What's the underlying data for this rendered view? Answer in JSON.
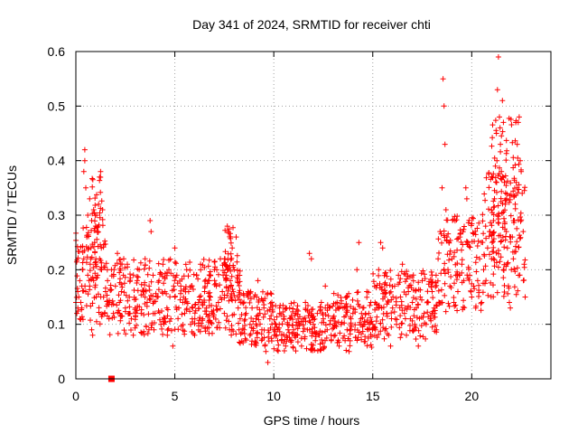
{
  "chart_data": {
    "type": "scatter",
    "title": "Day 341 of 2024, SRMTID for receiver chti",
    "xlabel": "GPS time / hours",
    "ylabel": "SRMTID / TECUs",
    "xlim": [
      0,
      24
    ],
    "ylim": [
      0,
      0.6
    ],
    "xticks": [
      0,
      5,
      10,
      15,
      20
    ],
    "xtick_labels": [
      "0",
      "5",
      "10",
      "15",
      "20"
    ],
    "yticks": [
      0,
      0.1,
      0.2,
      0.3,
      0.4,
      0.5,
      0.6
    ],
    "ytick_labels": [
      "0",
      "0.1",
      "0.2",
      "0.3",
      "0.4",
      "0.5",
      "0.6"
    ],
    "grid": true,
    "marker": "plus",
    "marker_color": "#ff0000",
    "series": [
      {
        "name": "SRMTID",
        "points": [
          [
            0.0,
            0.14
          ],
          [
            0.05,
            0.12
          ],
          [
            0.1,
            0.16
          ],
          [
            0.1,
            0.13
          ],
          [
            0.15,
            0.15
          ],
          [
            0.2,
            0.11
          ],
          [
            0.2,
            0.18
          ],
          [
            0.25,
            0.14
          ],
          [
            0.3,
            0.13
          ],
          [
            0.3,
            0.17
          ],
          [
            0.35,
            0.2
          ],
          [
            0.4,
            0.22
          ],
          [
            0.4,
            0.38
          ],
          [
            0.45,
            0.42
          ],
          [
            0.45,
            0.4
          ],
          [
            0.5,
            0.35
          ],
          [
            0.5,
            0.16
          ],
          [
            0.55,
            0.26
          ],
          [
            0.6,
            0.3
          ],
          [
            0.6,
            0.19
          ],
          [
            0.65,
            0.24
          ],
          [
            0.7,
            0.33
          ],
          [
            0.7,
            0.17
          ],
          [
            0.75,
            0.22
          ],
          [
            0.8,
            0.29
          ],
          [
            0.8,
            0.09
          ],
          [
            0.85,
            0.08
          ],
          [
            0.9,
            0.31
          ],
          [
            0.9,
            0.18
          ],
          [
            0.95,
            0.25
          ],
          [
            1.0,
            0.28
          ],
          [
            1.0,
            0.21
          ],
          [
            1.05,
            0.3
          ],
          [
            1.1,
            0.27
          ],
          [
            1.1,
            0.19
          ],
          [
            1.15,
            0.32
          ],
          [
            1.2,
            0.37
          ],
          [
            1.2,
            0.22
          ],
          [
            1.25,
            0.38
          ],
          [
            1.3,
            0.2
          ],
          [
            1.35,
            0.31
          ],
          [
            1.4,
            0.15
          ],
          [
            1.45,
            0.12
          ],
          [
            1.5,
            0.16
          ],
          [
            1.6,
            0.18
          ],
          [
            1.7,
            0.14
          ],
          [
            1.8,
            0.2
          ],
          [
            1.9,
            0.12
          ],
          [
            2.0,
            0.17
          ],
          [
            2.1,
            0.23
          ],
          [
            2.2,
            0.14
          ],
          [
            2.3,
            0.16
          ],
          [
            2.4,
            0.19
          ],
          [
            2.5,
            0.13
          ],
          [
            2.6,
            0.21
          ],
          [
            2.7,
            0.15
          ],
          [
            2.8,
            0.11
          ],
          [
            2.9,
            0.08
          ],
          [
            3.0,
            0.13
          ],
          [
            3.1,
            0.18
          ],
          [
            3.2,
            0.2
          ],
          [
            3.3,
            0.12
          ],
          [
            3.4,
            0.16
          ],
          [
            3.5,
            0.22
          ],
          [
            3.6,
            0.14
          ],
          [
            3.7,
            0.17
          ],
          [
            3.75,
            0.29
          ],
          [
            3.8,
            0.27
          ],
          [
            3.9,
            0.19
          ],
          [
            4.0,
            0.12
          ],
          [
            4.1,
            0.15
          ],
          [
            4.2,
            0.18
          ],
          [
            4.3,
            0.1
          ],
          [
            4.4,
            0.21
          ],
          [
            4.5,
            0.16
          ],
          [
            4.6,
            0.13
          ],
          [
            4.7,
            0.2
          ],
          [
            4.8,
            0.11
          ],
          [
            4.9,
            0.06
          ],
          [
            5.0,
            0.24
          ],
          [
            5.0,
            0.15
          ],
          [
            5.1,
            0.19
          ],
          [
            5.2,
            0.13
          ],
          [
            5.3,
            0.17
          ],
          [
            5.4,
            0.14
          ],
          [
            5.5,
            0.12
          ],
          [
            5.6,
            0.2
          ],
          [
            5.7,
            0.16
          ],
          [
            5.8,
            0.1
          ],
          [
            5.9,
            0.13
          ],
          [
            6.0,
            0.08
          ],
          [
            6.1,
            0.19
          ],
          [
            6.2,
            0.14
          ],
          [
            6.3,
            0.21
          ],
          [
            6.4,
            0.11
          ],
          [
            6.5,
            0.16
          ],
          [
            6.6,
            0.13
          ],
          [
            6.7,
            0.18
          ],
          [
            6.8,
            0.15
          ],
          [
            6.9,
            0.12
          ],
          [
            7.0,
            0.2
          ],
          [
            7.1,
            0.17
          ],
          [
            7.2,
            0.14
          ],
          [
            7.3,
            0.22
          ],
          [
            7.4,
            0.16
          ],
          [
            7.5,
            0.12
          ],
          [
            7.6,
            0.19
          ],
          [
            7.65,
            0.28
          ],
          [
            7.7,
            0.27
          ],
          [
            7.8,
            0.18
          ],
          [
            7.9,
            0.24
          ],
          [
            8.0,
            0.2
          ],
          [
            8.1,
            0.26
          ],
          [
            8.2,
            0.13
          ],
          [
            8.3,
            0.11
          ],
          [
            8.4,
            0.14
          ],
          [
            8.5,
            0.09
          ],
          [
            8.6,
            0.12
          ],
          [
            8.7,
            0.16
          ],
          [
            8.8,
            0.1
          ],
          [
            8.9,
            0.13
          ],
          [
            9.0,
            0.15
          ],
          [
            9.1,
            0.11
          ],
          [
            9.2,
            0.18
          ],
          [
            9.3,
            0.12
          ],
          [
            9.4,
            0.09
          ],
          [
            9.5,
            0.13
          ],
          [
            9.6,
            0.05
          ],
          [
            9.7,
            0.03
          ],
          [
            9.8,
            0.11
          ],
          [
            9.9,
            0.14
          ],
          [
            10.0,
            0.09
          ],
          [
            10.1,
            0.1
          ],
          [
            10.2,
            0.07
          ],
          [
            10.3,
            0.12
          ],
          [
            10.4,
            0.08
          ],
          [
            10.5,
            0.11
          ],
          [
            10.6,
            0.06
          ],
          [
            10.7,
            0.1
          ],
          [
            10.8,
            0.13
          ],
          [
            10.9,
            0.07
          ],
          [
            11.0,
            0.09
          ],
          [
            11.1,
            0.12
          ],
          [
            11.2,
            0.08
          ],
          [
            11.3,
            0.1
          ],
          [
            11.4,
            0.06
          ],
          [
            11.5,
            0.11
          ],
          [
            11.6,
            0.14
          ],
          [
            11.7,
            0.09
          ],
          [
            11.8,
            0.23
          ],
          [
            11.9,
            0.22
          ],
          [
            12.0,
            0.1
          ],
          [
            12.1,
            0.07
          ],
          [
            12.2,
            0.12
          ],
          [
            12.3,
            0.08
          ],
          [
            12.4,
            0.14
          ],
          [
            12.5,
            0.11
          ],
          [
            12.6,
            0.17
          ],
          [
            12.7,
            0.09
          ],
          [
            12.8,
            0.13
          ],
          [
            12.9,
            0.07
          ],
          [
            13.0,
            0.11
          ],
          [
            13.1,
            0.08
          ],
          [
            13.2,
            0.14
          ],
          [
            13.3,
            0.06
          ],
          [
            13.4,
            0.1
          ],
          [
            13.5,
            0.13
          ],
          [
            13.6,
            0.07
          ],
          [
            13.7,
            0.09
          ],
          [
            13.8,
            0.05
          ],
          [
            13.9,
            0.11
          ],
          [
            14.0,
            0.12
          ],
          [
            14.1,
            0.09
          ],
          [
            14.2,
            0.2
          ],
          [
            14.3,
            0.25
          ],
          [
            14.4,
            0.11
          ],
          [
            14.5,
            0.13
          ],
          [
            14.6,
            0.1
          ],
          [
            14.7,
            0.16
          ],
          [
            14.8,
            0.12
          ],
          [
            14.9,
            0.14
          ],
          [
            15.0,
            0.1
          ],
          [
            15.1,
            0.17
          ],
          [
            15.2,
            0.13
          ],
          [
            15.3,
            0.2
          ],
          [
            15.4,
            0.25
          ],
          [
            15.5,
            0.24
          ],
          [
            15.6,
            0.15
          ],
          [
            15.7,
            0.12
          ],
          [
            15.8,
            0.08
          ],
          [
            15.9,
            0.06
          ],
          [
            16.0,
            0.13
          ],
          [
            16.1,
            0.17
          ],
          [
            16.2,
            0.1
          ],
          [
            16.3,
            0.19
          ],
          [
            16.4,
            0.15
          ],
          [
            16.5,
            0.21
          ],
          [
            16.6,
            0.12
          ],
          [
            16.7,
            0.08
          ],
          [
            16.8,
            0.16
          ],
          [
            16.9,
            0.11
          ],
          [
            17.0,
            0.14
          ],
          [
            17.1,
            0.09
          ],
          [
            17.2,
            0.13
          ],
          [
            17.3,
            0.06
          ],
          [
            17.4,
            0.15
          ],
          [
            17.5,
            0.18
          ],
          [
            17.6,
            0.12
          ],
          [
            17.7,
            0.1
          ],
          [
            17.8,
            0.14
          ],
          [
            17.9,
            0.11
          ],
          [
            18.0,
            0.16
          ],
          [
            18.1,
            0.13
          ],
          [
            18.2,
            0.19
          ],
          [
            18.3,
            0.22
          ],
          [
            18.4,
            0.27
          ],
          [
            18.5,
            0.35
          ],
          [
            18.55,
            0.55
          ],
          [
            18.6,
            0.5
          ],
          [
            18.65,
            0.43
          ],
          [
            18.7,
            0.31
          ],
          [
            18.75,
            0.26
          ],
          [
            18.8,
            0.2
          ],
          [
            18.9,
            0.17
          ],
          [
            19.0,
            0.22
          ],
          [
            19.1,
            0.14
          ],
          [
            19.2,
            0.19
          ],
          [
            19.3,
            0.16
          ],
          [
            19.4,
            0.26
          ],
          [
            19.5,
            0.21
          ],
          [
            19.6,
            0.18
          ],
          [
            19.7,
            0.35
          ],
          [
            19.75,
            0.33
          ],
          [
            19.8,
            0.25
          ],
          [
            19.9,
            0.19
          ],
          [
            20.0,
            0.15
          ],
          [
            20.1,
            0.17
          ],
          [
            20.2,
            0.13
          ],
          [
            20.3,
            0.18
          ],
          [
            20.4,
            0.22
          ],
          [
            20.5,
            0.14
          ],
          [
            20.6,
            0.2
          ],
          [
            20.7,
            0.28
          ],
          [
            20.8,
            0.24
          ],
          [
            20.9,
            0.27
          ],
          [
            21.0,
            0.22
          ],
          [
            21.1,
            0.29
          ],
          [
            21.15,
            0.33
          ],
          [
            21.2,
            0.39
          ],
          [
            21.25,
            0.45
          ],
          [
            21.3,
            0.53
          ],
          [
            21.35,
            0.59
          ],
          [
            21.4,
            0.48
          ],
          [
            21.45,
            0.43
          ],
          [
            21.5,
            0.38
          ],
          [
            21.55,
            0.51
          ],
          [
            21.6,
            0.47
          ],
          [
            21.65,
            0.36
          ],
          [
            21.7,
            0.32
          ],
          [
            21.75,
            0.27
          ],
          [
            21.8,
            0.24
          ],
          [
            21.85,
            0.17
          ],
          [
            21.9,
            0.14
          ],
          [
            21.95,
            0.13
          ],
          [
            22.0,
            0.2
          ],
          [
            22.05,
            0.26
          ],
          [
            22.1,
            0.22
          ],
          [
            22.15,
            0.29
          ],
          [
            22.2,
            0.32
          ],
          [
            22.25,
            0.36
          ],
          [
            22.3,
            0.43
          ],
          [
            22.35,
            0.47
          ],
          [
            22.4,
            0.48
          ],
          [
            22.45,
            0.4
          ],
          [
            22.5,
            0.38
          ],
          [
            22.55,
            0.34
          ],
          [
            22.6,
            0.27
          ],
          [
            22.65,
            0.21
          ],
          [
            22.7,
            0.15
          ]
        ],
        "dense_bands": [
          {
            "x_range": [
              0.0,
              1.5
            ],
            "y_range": [
              0.1,
              0.28
            ]
          },
          {
            "x_range": [
              0.8,
              1.4
            ],
            "y_range": [
              0.2,
              0.38
            ]
          },
          {
            "x_range": [
              1.5,
              4.5
            ],
            "y_range": [
              0.08,
              0.22
            ]
          },
          {
            "x_range": [
              4.5,
              8.2
            ],
            "y_range": [
              0.08,
              0.22
            ]
          },
          {
            "x_range": [
              7.5,
              8.3
            ],
            "y_range": [
              0.15,
              0.28
            ]
          },
          {
            "x_range": [
              8.2,
              10.0
            ],
            "y_range": [
              0.06,
              0.16
            ]
          },
          {
            "x_range": [
              10.0,
              13.0
            ],
            "y_range": [
              0.05,
              0.14
            ]
          },
          {
            "x_range": [
              13.0,
              15.0
            ],
            "y_range": [
              0.05,
              0.16
            ]
          },
          {
            "x_range": [
              15.0,
              18.3
            ],
            "y_range": [
              0.07,
              0.2
            ]
          },
          {
            "x_range": [
              18.3,
              20.5
            ],
            "y_range": [
              0.12,
              0.3
            ]
          },
          {
            "x_range": [
              20.5,
              22.7
            ],
            "y_range": [
              0.15,
              0.38
            ]
          },
          {
            "x_range": [
              21.0,
              22.5
            ],
            "y_range": [
              0.25,
              0.48
            ]
          }
        ]
      }
    ],
    "extra_marker": {
      "x": 1.8,
      "y": 0.0,
      "shape": "square"
    }
  }
}
